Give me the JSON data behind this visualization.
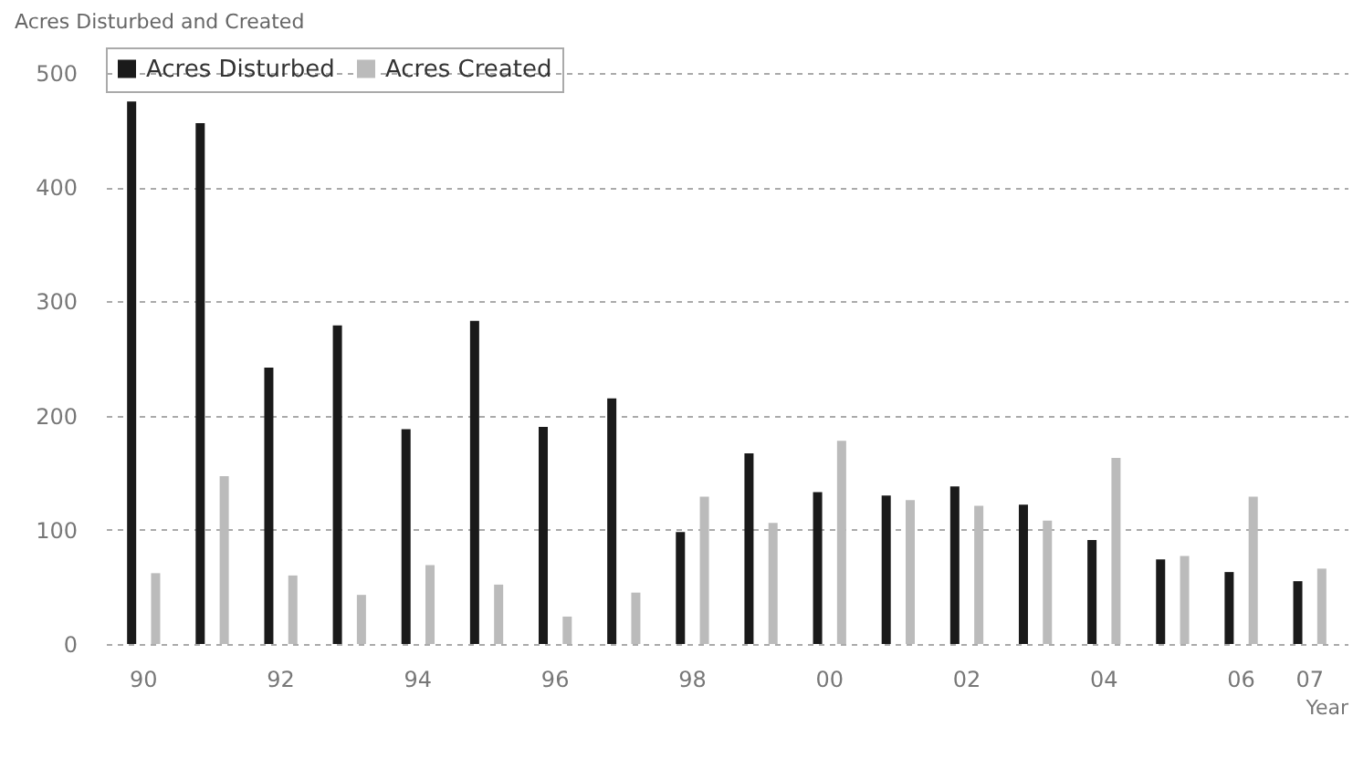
{
  "chart_data": {
    "type": "bar",
    "title": "Acres Disturbed and Created",
    "xlabel": "Year",
    "categories": [
      "90",
      null,
      "92",
      null,
      "94",
      null,
      "96",
      null,
      "98",
      null,
      "00",
      null,
      "02",
      null,
      "04",
      null,
      "06",
      "07"
    ],
    "series": [
      {
        "name": "Acres Disturbed",
        "color": "#1a1a1a",
        "values": [
          475,
          456,
          242,
          279,
          188,
          283,
          190,
          215,
          98,
          167,
          133,
          130,
          138,
          122,
          91,
          74,
          63,
          55
        ]
      },
      {
        "name": "Acres Created",
        "color": "#bbbbbb",
        "values": [
          62,
          147,
          60,
          43,
          69,
          52,
          24,
          45,
          129,
          106,
          178,
          126,
          121,
          108,
          163,
          77,
          129,
          66
        ]
      }
    ],
    "ylim": [
      0,
      500
    ],
    "yticks": [
      0,
      100,
      200,
      300,
      400,
      500
    ],
    "grid": "y",
    "legend": "top"
  }
}
